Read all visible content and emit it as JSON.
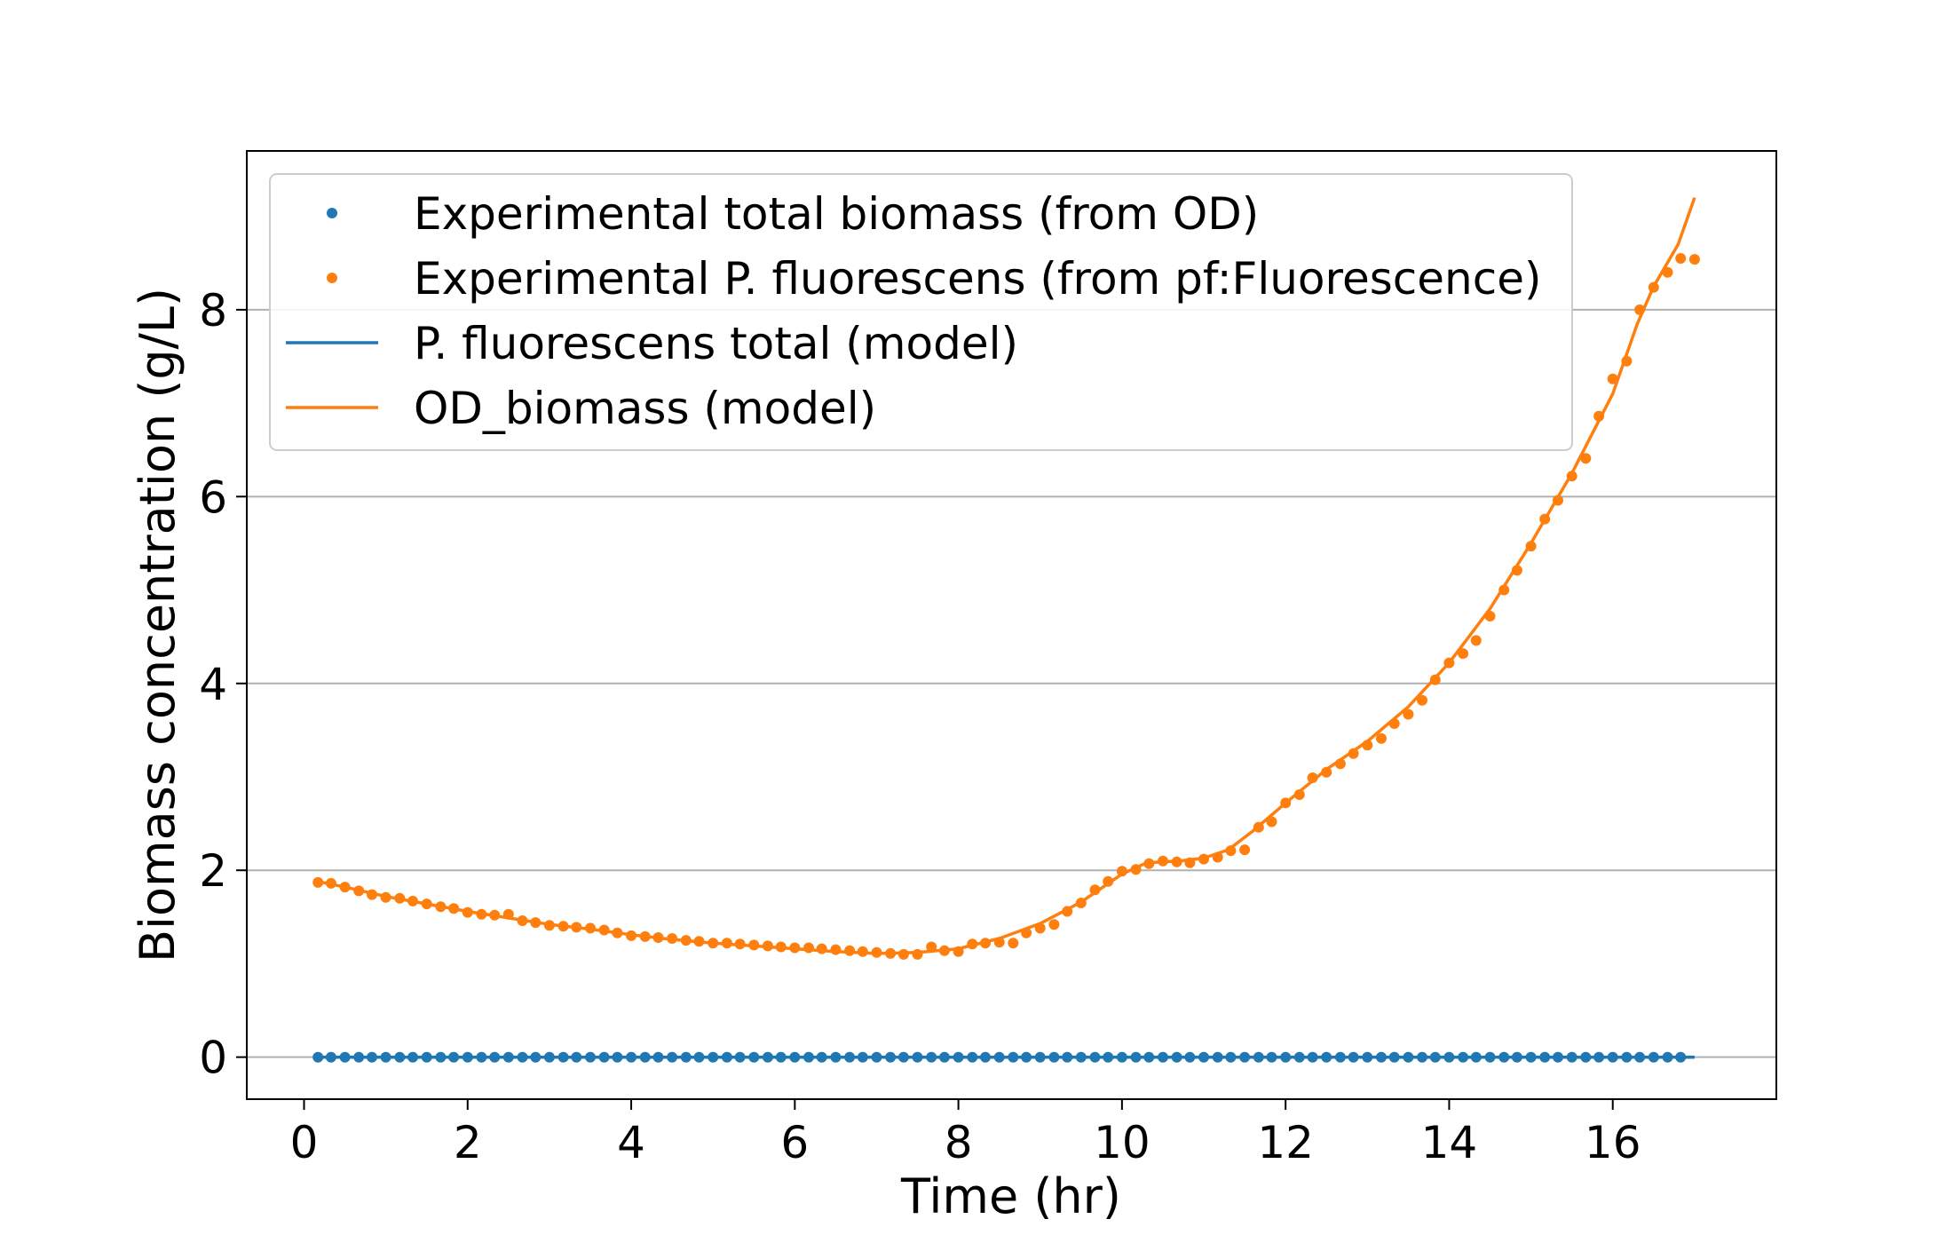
{
  "chart_data": {
    "type": "scatter",
    "xlabel": "Time (hr)",
    "ylabel": "Biomass concentration (g/L)",
    "xlim": [
      -0.7,
      18.0
    ],
    "ylim": [
      -0.45,
      9.7
    ],
    "xticks": [
      0,
      2,
      4,
      6,
      8,
      10,
      12,
      14,
      16
    ],
    "yticks": [
      0,
      2,
      4,
      6,
      8
    ],
    "grid": "horizontal",
    "legend_position": "top-left",
    "colors": {
      "blue": "#1f77b4",
      "orange": "#ff7f0e"
    },
    "series": [
      {
        "name": "Experimental total biomass (from OD)",
        "kind": "scatter",
        "color": "#1f77b4",
        "points": [
          [
            0.17,
            0.0
          ],
          [
            0.33,
            0.0
          ],
          [
            0.5,
            0.0
          ],
          [
            0.67,
            0.0
          ],
          [
            0.83,
            0.0
          ],
          [
            1.0,
            0.0
          ],
          [
            1.17,
            0.0
          ],
          [
            1.33,
            0.0
          ],
          [
            1.5,
            0.0
          ],
          [
            1.67,
            0.0
          ],
          [
            1.83,
            0.0
          ],
          [
            2.0,
            0.0
          ],
          [
            2.17,
            0.0
          ],
          [
            2.33,
            0.0
          ],
          [
            2.5,
            0.0
          ],
          [
            2.67,
            0.0
          ],
          [
            2.83,
            0.0
          ],
          [
            3.0,
            0.0
          ],
          [
            3.17,
            0.0
          ],
          [
            3.33,
            0.0
          ],
          [
            3.5,
            0.0
          ],
          [
            3.67,
            0.0
          ],
          [
            3.83,
            0.0
          ],
          [
            4.0,
            0.0
          ],
          [
            4.17,
            0.0
          ],
          [
            4.33,
            0.0
          ],
          [
            4.5,
            0.0
          ],
          [
            4.67,
            0.0
          ],
          [
            4.83,
            0.0
          ],
          [
            5.0,
            0.0
          ],
          [
            5.17,
            0.0
          ],
          [
            5.33,
            0.0
          ],
          [
            5.5,
            0.0
          ],
          [
            5.67,
            0.0
          ],
          [
            5.83,
            0.0
          ],
          [
            6.0,
            0.0
          ],
          [
            6.17,
            0.0
          ],
          [
            6.33,
            0.0
          ],
          [
            6.5,
            0.0
          ],
          [
            6.67,
            0.0
          ],
          [
            6.83,
            0.0
          ],
          [
            7.0,
            0.0
          ],
          [
            7.17,
            0.0
          ],
          [
            7.33,
            0.0
          ],
          [
            7.5,
            0.0
          ],
          [
            7.67,
            0.0
          ],
          [
            7.83,
            0.0
          ],
          [
            8.0,
            0.0
          ],
          [
            8.17,
            0.0
          ],
          [
            8.33,
            0.0
          ],
          [
            8.5,
            0.0
          ],
          [
            8.67,
            0.0
          ],
          [
            8.83,
            0.0
          ],
          [
            9.0,
            0.0
          ],
          [
            9.17,
            0.0
          ],
          [
            9.33,
            0.0
          ],
          [
            9.5,
            0.0
          ],
          [
            9.67,
            0.0
          ],
          [
            9.83,
            0.0
          ],
          [
            10.0,
            0.0
          ],
          [
            10.17,
            0.0
          ],
          [
            10.33,
            0.0
          ],
          [
            10.5,
            0.0
          ],
          [
            10.67,
            0.0
          ],
          [
            10.83,
            0.0
          ],
          [
            11.0,
            0.0
          ],
          [
            11.17,
            0.0
          ],
          [
            11.33,
            0.0
          ],
          [
            11.5,
            0.0
          ],
          [
            11.67,
            0.0
          ],
          [
            11.83,
            0.0
          ],
          [
            12.0,
            0.0
          ],
          [
            12.17,
            0.0
          ],
          [
            12.33,
            0.0
          ],
          [
            12.5,
            0.0
          ],
          [
            12.67,
            0.0
          ],
          [
            12.83,
            0.0
          ],
          [
            13.0,
            0.0
          ],
          [
            13.17,
            0.0
          ],
          [
            13.33,
            0.0
          ],
          [
            13.5,
            0.0
          ],
          [
            13.67,
            0.0
          ],
          [
            13.83,
            0.0
          ],
          [
            14.0,
            0.0
          ],
          [
            14.17,
            0.0
          ],
          [
            14.33,
            0.0
          ],
          [
            14.5,
            0.0
          ],
          [
            14.67,
            0.0
          ],
          [
            14.83,
            0.0
          ],
          [
            15.0,
            0.0
          ],
          [
            15.17,
            0.0
          ],
          [
            15.33,
            0.0
          ],
          [
            15.5,
            0.0
          ],
          [
            15.67,
            0.0
          ],
          [
            15.83,
            0.0
          ],
          [
            16.0,
            0.0
          ],
          [
            16.17,
            0.0
          ],
          [
            16.33,
            0.0
          ],
          [
            16.5,
            0.0
          ],
          [
            16.67,
            0.0
          ],
          [
            16.83,
            0.0
          ]
        ]
      },
      {
        "name": "Experimental P. fluorescens (from pf:Fluorescence)",
        "kind": "scatter",
        "color": "#ff7f0e",
        "points": [
          [
            0.17,
            1.87
          ],
          [
            0.33,
            1.86
          ],
          [
            0.5,
            1.82
          ],
          [
            0.67,
            1.78
          ],
          [
            0.83,
            1.74
          ],
          [
            1.0,
            1.71
          ],
          [
            1.17,
            1.7
          ],
          [
            1.33,
            1.67
          ],
          [
            1.5,
            1.64
          ],
          [
            1.67,
            1.61
          ],
          [
            1.83,
            1.59
          ],
          [
            2.0,
            1.55
          ],
          [
            2.17,
            1.53
          ],
          [
            2.33,
            1.52
          ],
          [
            2.5,
            1.53
          ],
          [
            2.67,
            1.46
          ],
          [
            2.83,
            1.44
          ],
          [
            3.0,
            1.41
          ],
          [
            3.17,
            1.4
          ],
          [
            3.33,
            1.39
          ],
          [
            3.5,
            1.38
          ],
          [
            3.67,
            1.36
          ],
          [
            3.83,
            1.33
          ],
          [
            4.0,
            1.3
          ],
          [
            4.17,
            1.29
          ],
          [
            4.33,
            1.28
          ],
          [
            4.5,
            1.27
          ],
          [
            4.67,
            1.25
          ],
          [
            4.83,
            1.24
          ],
          [
            5.0,
            1.22
          ],
          [
            5.17,
            1.22
          ],
          [
            5.33,
            1.21
          ],
          [
            5.5,
            1.2
          ],
          [
            5.67,
            1.19
          ],
          [
            5.83,
            1.18
          ],
          [
            6.0,
            1.17
          ],
          [
            6.17,
            1.17
          ],
          [
            6.33,
            1.16
          ],
          [
            6.5,
            1.15
          ],
          [
            6.67,
            1.14
          ],
          [
            6.83,
            1.13
          ],
          [
            7.0,
            1.12
          ],
          [
            7.17,
            1.11
          ],
          [
            7.33,
            1.1
          ],
          [
            7.5,
            1.1
          ],
          [
            7.67,
            1.18
          ],
          [
            7.83,
            1.14
          ],
          [
            8.0,
            1.13
          ],
          [
            8.17,
            1.21
          ],
          [
            8.33,
            1.22
          ],
          [
            8.5,
            1.23
          ],
          [
            8.67,
            1.22
          ],
          [
            8.83,
            1.33
          ],
          [
            9.0,
            1.38
          ],
          [
            9.17,
            1.42
          ],
          [
            9.33,
            1.56
          ],
          [
            9.5,
            1.65
          ],
          [
            9.67,
            1.79
          ],
          [
            9.83,
            1.88
          ],
          [
            10.0,
            1.99
          ],
          [
            10.17,
            2.01
          ],
          [
            10.33,
            2.07
          ],
          [
            10.5,
            2.1
          ],
          [
            10.67,
            2.09
          ],
          [
            10.83,
            2.08
          ],
          [
            11.0,
            2.12
          ],
          [
            11.17,
            2.14
          ],
          [
            11.33,
            2.21
          ],
          [
            11.5,
            2.22
          ],
          [
            11.67,
            2.46
          ],
          [
            11.83,
            2.52
          ],
          [
            12.0,
            2.72
          ],
          [
            12.17,
            2.81
          ],
          [
            12.33,
            2.99
          ],
          [
            12.5,
            3.05
          ],
          [
            12.67,
            3.14
          ],
          [
            12.83,
            3.25
          ],
          [
            13.0,
            3.34
          ],
          [
            13.17,
            3.41
          ],
          [
            13.33,
            3.57
          ],
          [
            13.5,
            3.67
          ],
          [
            13.67,
            3.82
          ],
          [
            13.83,
            4.04
          ],
          [
            14.0,
            4.22
          ],
          [
            14.17,
            4.32
          ],
          [
            14.33,
            4.46
          ],
          [
            14.5,
            4.72
          ],
          [
            14.67,
            5.0
          ],
          [
            14.83,
            5.21
          ],
          [
            15.0,
            5.47
          ],
          [
            15.17,
            5.76
          ],
          [
            15.33,
            5.96
          ],
          [
            15.5,
            6.22
          ],
          [
            15.67,
            6.41
          ],
          [
            15.83,
            6.86
          ],
          [
            16.0,
            7.26
          ],
          [
            16.17,
            7.45
          ],
          [
            16.33,
            8.0
          ],
          [
            16.5,
            8.24
          ],
          [
            16.67,
            8.4
          ],
          [
            16.83,
            8.55
          ],
          [
            17.0,
            8.54
          ]
        ]
      },
      {
        "name": "P. fluorescens total (model)",
        "kind": "line",
        "color": "#1f77b4",
        "points": [
          [
            0.17,
            0.0
          ],
          [
            17.0,
            0.0
          ]
        ]
      },
      {
        "name": "OD_biomass (model)",
        "kind": "line",
        "color": "#ff7f0e",
        "points": [
          [
            0.17,
            1.88
          ],
          [
            0.5,
            1.82
          ],
          [
            1.0,
            1.72
          ],
          [
            1.5,
            1.64
          ],
          [
            2.0,
            1.56
          ],
          [
            2.5,
            1.49
          ],
          [
            3.0,
            1.42
          ],
          [
            3.5,
            1.37
          ],
          [
            4.0,
            1.31
          ],
          [
            4.5,
            1.26
          ],
          [
            5.0,
            1.22
          ],
          [
            5.5,
            1.19
          ],
          [
            6.0,
            1.16
          ],
          [
            6.5,
            1.13
          ],
          [
            7.0,
            1.11
          ],
          [
            7.5,
            1.12
          ],
          [
            8.0,
            1.16
          ],
          [
            8.5,
            1.27
          ],
          [
            9.0,
            1.43
          ],
          [
            9.5,
            1.66
          ],
          [
            10.0,
            1.96
          ],
          [
            10.3,
            2.08
          ],
          [
            10.7,
            2.1
          ],
          [
            11.0,
            2.13
          ],
          [
            11.3,
            2.22
          ],
          [
            11.6,
            2.42
          ],
          [
            12.0,
            2.72
          ],
          [
            12.5,
            3.08
          ],
          [
            13.0,
            3.38
          ],
          [
            13.5,
            3.75
          ],
          [
            14.0,
            4.22
          ],
          [
            14.5,
            4.8
          ],
          [
            15.0,
            5.5
          ],
          [
            15.5,
            6.25
          ],
          [
            16.0,
            7.1
          ],
          [
            16.3,
            7.85
          ],
          [
            16.5,
            8.25
          ],
          [
            16.8,
            8.7
          ],
          [
            17.0,
            9.2
          ]
        ]
      }
    ]
  }
}
